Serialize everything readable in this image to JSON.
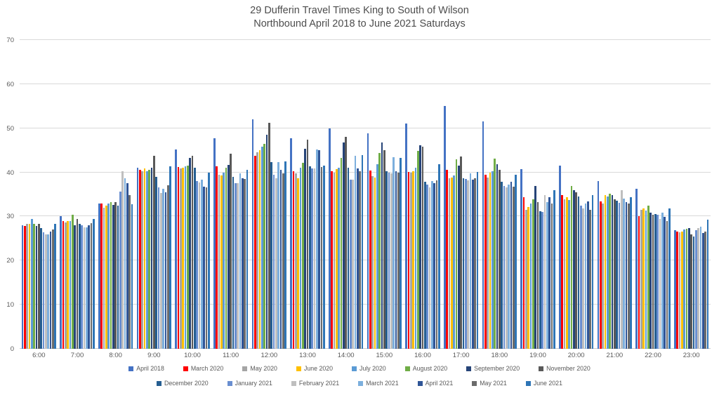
{
  "title": {
    "line1": "29 Dufferin Travel Times King to South of Wilson",
    "line2": "Northbound April 2018 to June 2021 Saturdays"
  },
  "chart_data": {
    "type": "bar",
    "title": "29 Dufferin Travel Times King to South of Wilson — Northbound April 2018 to June 2021 Saturdays",
    "xlabel": "",
    "ylabel": "",
    "ylim": [
      0,
      70
    ],
    "ytick_step": 10,
    "yticks": [
      0,
      10,
      20,
      30,
      40,
      50,
      60,
      70
    ],
    "grid": true,
    "legend_position": "bottom",
    "legend_row_break": 8,
    "categories": [
      "6:00",
      "7:00",
      "8:00",
      "9:00",
      "10:00",
      "11:00",
      "12:00",
      "13:00",
      "14:00",
      "15:00",
      "16:00",
      "17:00",
      "18:00",
      "19:00",
      "20:00",
      "21:00",
      "22:00",
      "23:00"
    ],
    "series": [
      {
        "name": "April 2018",
        "color": "#4472C4",
        "values": [
          28.0,
          30.0,
          33.0,
          41.0,
          45.2,
          47.7,
          52.0,
          47.8,
          50.0,
          48.9,
          51.0,
          55.0,
          51.5,
          40.7,
          41.5,
          38.0,
          36.3,
          26.9
        ]
      },
      {
        "name": "March 2020",
        "color": "#FF0000",
        "values": [
          27.8,
          29.0,
          33.0,
          40.6,
          41.2,
          41.3,
          43.8,
          40.3,
          40.2,
          40.4,
          40.1,
          40.5,
          39.4,
          34.4,
          34.9,
          33.4,
          30.1,
          26.5
        ]
      },
      {
        "name": "May 2020",
        "color": "#A5A5A5",
        "values": [
          28.3,
          28.6,
          32.0,
          40.3,
          40.9,
          39.5,
          44.5,
          39.8,
          39.9,
          39.2,
          40.0,
          38.7,
          38.8,
          31.5,
          33.9,
          33.0,
          31.5,
          26.4
        ]
      },
      {
        "name": "June 2020",
        "color": "#FFC000",
        "values": [
          28.4,
          29.0,
          32.4,
          40.9,
          41.0,
          39.3,
          45.0,
          38.6,
          40.7,
          38.9,
          40.3,
          38.8,
          39.9,
          32.1,
          34.3,
          34.9,
          31.9,
          26.6
        ]
      },
      {
        "name": "July 2020",
        "color": "#5B9BD5",
        "values": [
          29.4,
          29.0,
          33.0,
          40.3,
          41.3,
          40.0,
          45.8,
          41.0,
          41.0,
          41.8,
          41.0,
          39.3,
          40.2,
          33.0,
          33.8,
          34.6,
          31.4,
          27.0
        ]
      },
      {
        "name": "August 2020",
        "color": "#70AD47",
        "values": [
          28.4,
          30.4,
          33.2,
          40.6,
          41.5,
          41.0,
          46.5,
          42.2,
          43.3,
          44.4,
          44.9,
          42.9,
          43.1,
          33.9,
          36.9,
          35.2,
          32.4,
          27.2
        ]
      },
      {
        "name": "September 2020",
        "color": "#264478",
        "values": [
          27.9,
          28.0,
          32.6,
          41.0,
          43.3,
          41.7,
          48.5,
          45.3,
          46.8,
          46.8,
          46.2,
          41.5,
          41.9,
          36.9,
          35.9,
          34.8,
          30.9,
          27.4
        ]
      },
      {
        "name": "November 2020",
        "color": "#595959",
        "values": [
          28.4,
          29.5,
          33.2,
          43.8,
          43.7,
          44.3,
          51.2,
          47.4,
          48.1,
          45.0,
          45.9,
          43.6,
          40.5,
          33.3,
          35.5,
          33.9,
          30.4,
          25.9
        ]
      },
      {
        "name": "December 2020",
        "color": "#255E91",
        "values": [
          27.4,
          28.4,
          32.4,
          39.0,
          41.0,
          39.0,
          42.3,
          41.3,
          41.0,
          40.2,
          37.9,
          38.6,
          37.9,
          31.2,
          34.6,
          33.5,
          30.6,
          25.4
        ]
      },
      {
        "name": "January 2021",
        "color": "#698ED0",
        "values": [
          26.4,
          28.0,
          35.6,
          36.6,
          38.0,
          37.5,
          39.5,
          40.9,
          38.4,
          39.9,
          37.2,
          38.5,
          36.9,
          31.0,
          32.4,
          33.1,
          30.4,
          26.9
        ]
      },
      {
        "name": "February 2021",
        "color": "#BFBFBF",
        "values": [
          25.9,
          27.5,
          40.3,
          35.3,
          37.7,
          37.6,
          38.7,
          40.9,
          38.3,
          39.7,
          36.6,
          38.2,
          36.6,
          34.9,
          31.9,
          35.9,
          29.4,
          27.4
        ]
      },
      {
        "name": "March 2021",
        "color": "#7CAFDD",
        "values": [
          26.0,
          27.6,
          38.6,
          36.2,
          38.3,
          39.8,
          42.3,
          45.2,
          43.7,
          43.4,
          38.0,
          39.7,
          37.3,
          33.3,
          32.9,
          34.1,
          30.9,
          27.7
        ]
      },
      {
        "name": "April 2021",
        "color": "#2F5597",
        "values": [
          26.5,
          28.0,
          37.5,
          35.5,
          36.8,
          38.7,
          40.5,
          45.0,
          40.9,
          40.3,
          37.5,
          38.4,
          37.9,
          34.3,
          33.4,
          33.3,
          29.9,
          26.3
        ]
      },
      {
        "name": "May 2021",
        "color": "#6B6B6B",
        "values": [
          27.0,
          28.5,
          34.8,
          37.0,
          36.6,
          38.5,
          39.7,
          41.2,
          40.3,
          40.0,
          38.2,
          38.6,
          36.8,
          33.0,
          31.5,
          32.9,
          28.9,
          26.5
        ]
      },
      {
        "name": "June 2021",
        "color": "#2E75B6",
        "values": [
          28.4,
          29.5,
          32.8,
          41.3,
          39.9,
          40.5,
          42.5,
          41.5,
          43.9,
          43.3,
          41.9,
          40.1,
          39.5,
          35.9,
          34.9,
          34.4,
          31.8,
          29.3
        ]
      }
    ]
  },
  "colors": {
    "gridline": "#d9d9d9",
    "axis_text": "#595959",
    "title_text": "#4d4d4d"
  }
}
